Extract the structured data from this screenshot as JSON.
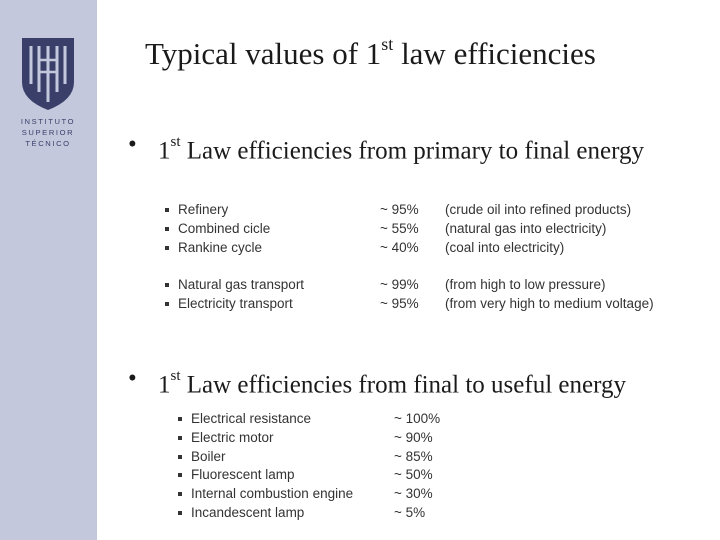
{
  "logo": {
    "lines": [
      "INSTITUTO",
      "SUPERIOR",
      "TÉCNICO"
    ]
  },
  "title": {
    "pre": "Typical values of 1",
    "sup": "st",
    "post": " law efficiencies"
  },
  "bullet1": {
    "pre": "1",
    "sup": "st",
    "post": " Law efficiencies from primary to final energy",
    "items": [
      {
        "name": "Refinery",
        "value": "~ 95%",
        "note": "(crude oil into refined products)"
      },
      {
        "name": "Combined cicle",
        "value": "~ 55%",
        "note": "(natural gas into electricity)"
      },
      {
        "name": "Rankine cycle",
        "value": "~ 40%",
        "note": "(coal into electricity)"
      }
    ],
    "items2": [
      {
        "name": "Natural gas transport",
        "value": "~ 99%",
        "note": "(from high to low pressure)"
      },
      {
        "name": "Electricity transport",
        "value": "~ 95%",
        "note": "(from very high to medium voltage)"
      }
    ]
  },
  "bullet2": {
    "pre": "1",
    "sup": "st",
    "post": " Law efficiencies from final to useful energy",
    "items": [
      {
        "name": "Electrical resistance",
        "value": "~ 100%"
      },
      {
        "name": "Electric motor",
        "value": "~ 90%"
      },
      {
        "name": "Boiler",
        "value": "~ 85%"
      },
      {
        "name": "Fluorescent lamp",
        "value": "~ 50%"
      },
      {
        "name": "Internal combustion engine",
        "value": "~ 30%"
      },
      {
        "name": "Incandescent lamp",
        "value": "~ 5%"
      }
    ]
  },
  "colors": {
    "sidebar": "#c3c8dc",
    "logo_blue": "#3a3f6a"
  }
}
